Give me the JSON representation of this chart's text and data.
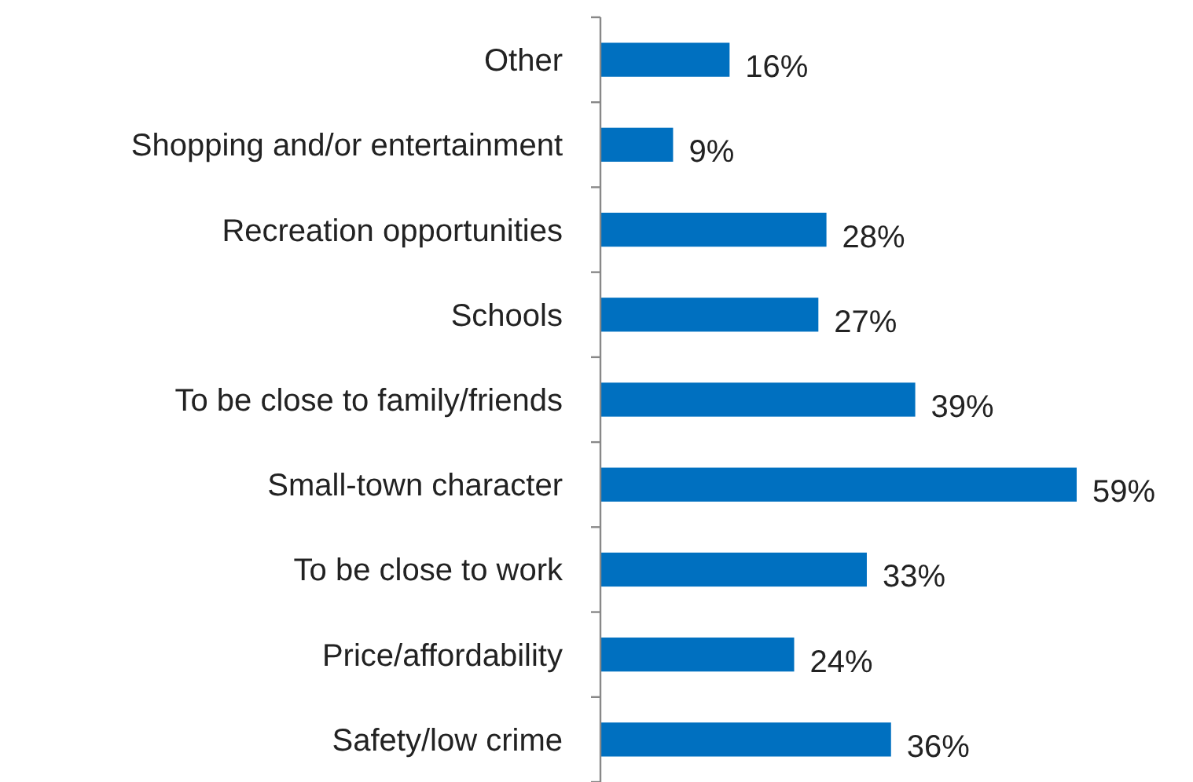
{
  "chart_data": {
    "type": "bar",
    "orientation": "horizontal",
    "categories": [
      "Other",
      "Shopping and/or entertainment",
      "Recreation opportunities",
      "Schools",
      "To be close to family/friends",
      "Small-town character",
      "To be close to work",
      "Price/affordability",
      "Safety/low crime"
    ],
    "values": [
      16,
      9,
      28,
      27,
      39,
      59,
      33,
      24,
      36
    ],
    "color": "#0070c0",
    "data_labels": true,
    "value_labels": [
      "16%",
      "9%",
      "28%",
      "27%",
      "39%",
      "59%",
      "33%",
      "24%",
      "36%"
    ]
  }
}
